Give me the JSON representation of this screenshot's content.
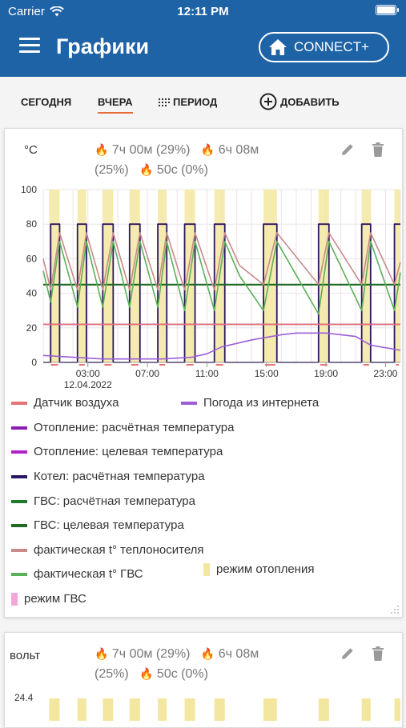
{
  "status_bar": {
    "carrier": "Carrier",
    "time": "12:11 PM"
  },
  "header": {
    "title": "Графики",
    "connect_label": "CONNECT+"
  },
  "tabs": [
    {
      "label": "СЕГОДНЯ"
    },
    {
      "label": "ВЧЕРА",
      "active": true
    },
    {
      "label": "ПЕРИОД",
      "icon": "grid-calendar-icon"
    },
    {
      "label": "ДОБАВИТЬ",
      "icon": "plus-circle-icon"
    }
  ],
  "card1": {
    "unit": "°C",
    "stat_heating_time": "7ч 00м (29%)",
    "stat_hot_water_time": "6ч 08м",
    "stat_hot_water_pct": "(25%)",
    "stat_other": "50с (0%)",
    "legend": [
      {
        "label": "Датчик воздуха",
        "color": "#e57373"
      },
      {
        "label": "Погода из интернета",
        "color": "#9c5fd6"
      },
      {
        "label": "Отопление: расчётная температура",
        "color": "#8a1bb3"
      },
      {
        "label": "Отопление: целевая температура",
        "color": "#b21fc9"
      },
      {
        "label": "Котел: расчётная температура",
        "color": "#2a1660"
      },
      {
        "label": "ГВС: расчётная температура",
        "color": "#1f7a2e"
      },
      {
        "label": "ГВС: целевая температура",
        "color": "#1f6a25"
      },
      {
        "label": "фактическая t° теплоносителя",
        "color": "#c98a8a"
      },
      {
        "label": "фактическая t° ГВС",
        "color": "#5bb05b"
      },
      {
        "label": "режим отопления",
        "color": "#f3e7a0"
      },
      {
        "label": "режим ГВС",
        "color": "#f2a6d9"
      }
    ]
  },
  "card2": {
    "unit": "вольт",
    "stat_heating_time": "7ч 00м (29%)",
    "stat_hot_water_time": "6ч 08м",
    "stat_hot_water_pct": "(25%)",
    "stat_other": "50с (0%)",
    "y_top_label": "24.4"
  },
  "chart_data": {
    "type": "line",
    "ylim": [
      0,
      100
    ],
    "yticks": [
      "0",
      "20",
      "40",
      "60",
      "80",
      "100"
    ],
    "xticks": [
      "03:00",
      "07:00",
      "11:00",
      "15:00",
      "19:00",
      "23:00"
    ],
    "x_date_label": "12.04.2022",
    "heating_mode_periods": [
      [
        0.4,
        1.1
      ],
      [
        2.3,
        2.9
      ],
      [
        4.0,
        4.7
      ],
      [
        5.8,
        6.5
      ],
      [
        7.7,
        8.3
      ],
      [
        9.5,
        10.2
      ],
      [
        11.5,
        12.2
      ],
      [
        14.8,
        15.7
      ],
      [
        18.5,
        19.2
      ],
      [
        21.4,
        22.0
      ],
      [
        23.6,
        24.0
      ]
    ],
    "series": [
      {
        "name": "Котел: расчётная температура",
        "x": [
          0,
          0.5,
          0.5,
          1.1,
          1.1,
          2.3,
          2.3,
          2.9,
          2.9,
          4.0,
          4.0,
          4.7,
          4.7,
          5.8,
          5.8,
          6.5,
          6.5,
          7.7,
          7.7,
          8.3,
          8.3,
          9.5,
          9.5,
          10.2,
          10.2,
          11.5,
          11.5,
          12.2,
          12.2,
          14.8,
          14.8,
          15.7,
          15.7,
          18.5,
          18.5,
          19.2,
          19.2,
          21.4,
          21.4,
          22.0,
          22.0,
          23.6,
          23.6,
          24.0
        ],
        "y": [
          0,
          0,
          80,
          80,
          0,
          0,
          80,
          80,
          0,
          0,
          80,
          80,
          0,
          0,
          80,
          80,
          0,
          0,
          80,
          80,
          0,
          0,
          80,
          80,
          0,
          0,
          80,
          80,
          0,
          0,
          80,
          80,
          0,
          0,
          80,
          80,
          0,
          0,
          80,
          80,
          0,
          0,
          80,
          80
        ]
      },
      {
        "name": "ГВС: целевая температура",
        "x": [
          0,
          24
        ],
        "y": [
          45,
          45
        ]
      },
      {
        "name": "Отопление: расчётная температура",
        "x": [
          0,
          6,
          12,
          18,
          24
        ],
        "y": [
          22,
          22,
          22,
          22,
          22
        ]
      },
      {
        "name": "фактическая t° теплоносителя",
        "x": [
          0,
          0.5,
          1.1,
          2.3,
          2.9,
          4.0,
          4.7,
          5.8,
          6.5,
          7.7,
          8.3,
          9.5,
          10.2,
          11.5,
          12.2,
          13.2,
          14.8,
          15.7,
          18.5,
          19.2,
          21.4,
          22.0,
          23.6,
          24.0
        ],
        "y": [
          60,
          42,
          75,
          42,
          75,
          42,
          75,
          42,
          75,
          42,
          75,
          42,
          75,
          42,
          75,
          56,
          45,
          75,
          45,
          75,
          45,
          75,
          45,
          58
        ]
      },
      {
        "name": "фактическая t° ГВС",
        "x": [
          0,
          0.5,
          1.1,
          2.3,
          2.9,
          4.0,
          4.7,
          5.8,
          6.5,
          7.7,
          8.3,
          9.5,
          10.2,
          11.5,
          12.2,
          13.2,
          14.8,
          15.7,
          18.5,
          19.2,
          21.4,
          22.0,
          23.6,
          24.0
        ],
        "y": [
          53,
          35,
          70,
          32,
          70,
          32,
          70,
          32,
          70,
          32,
          70,
          30,
          70,
          30,
          70,
          50,
          30,
          70,
          28,
          70,
          30,
          70,
          30,
          52
        ]
      },
      {
        "name": "Погода из интернета",
        "x": [
          0,
          2,
          4,
          6,
          8,
          10,
          11,
          12,
          14,
          16,
          17,
          19,
          21,
          22,
          24
        ],
        "y": [
          4,
          3,
          2,
          2,
          2,
          3,
          5,
          9,
          13,
          16,
          17,
          17,
          15,
          10,
          7
        ]
      },
      {
        "name": "Датчик воздуха",
        "x": [
          0,
          24
        ],
        "y": [
          22,
          22
        ]
      }
    ]
  }
}
